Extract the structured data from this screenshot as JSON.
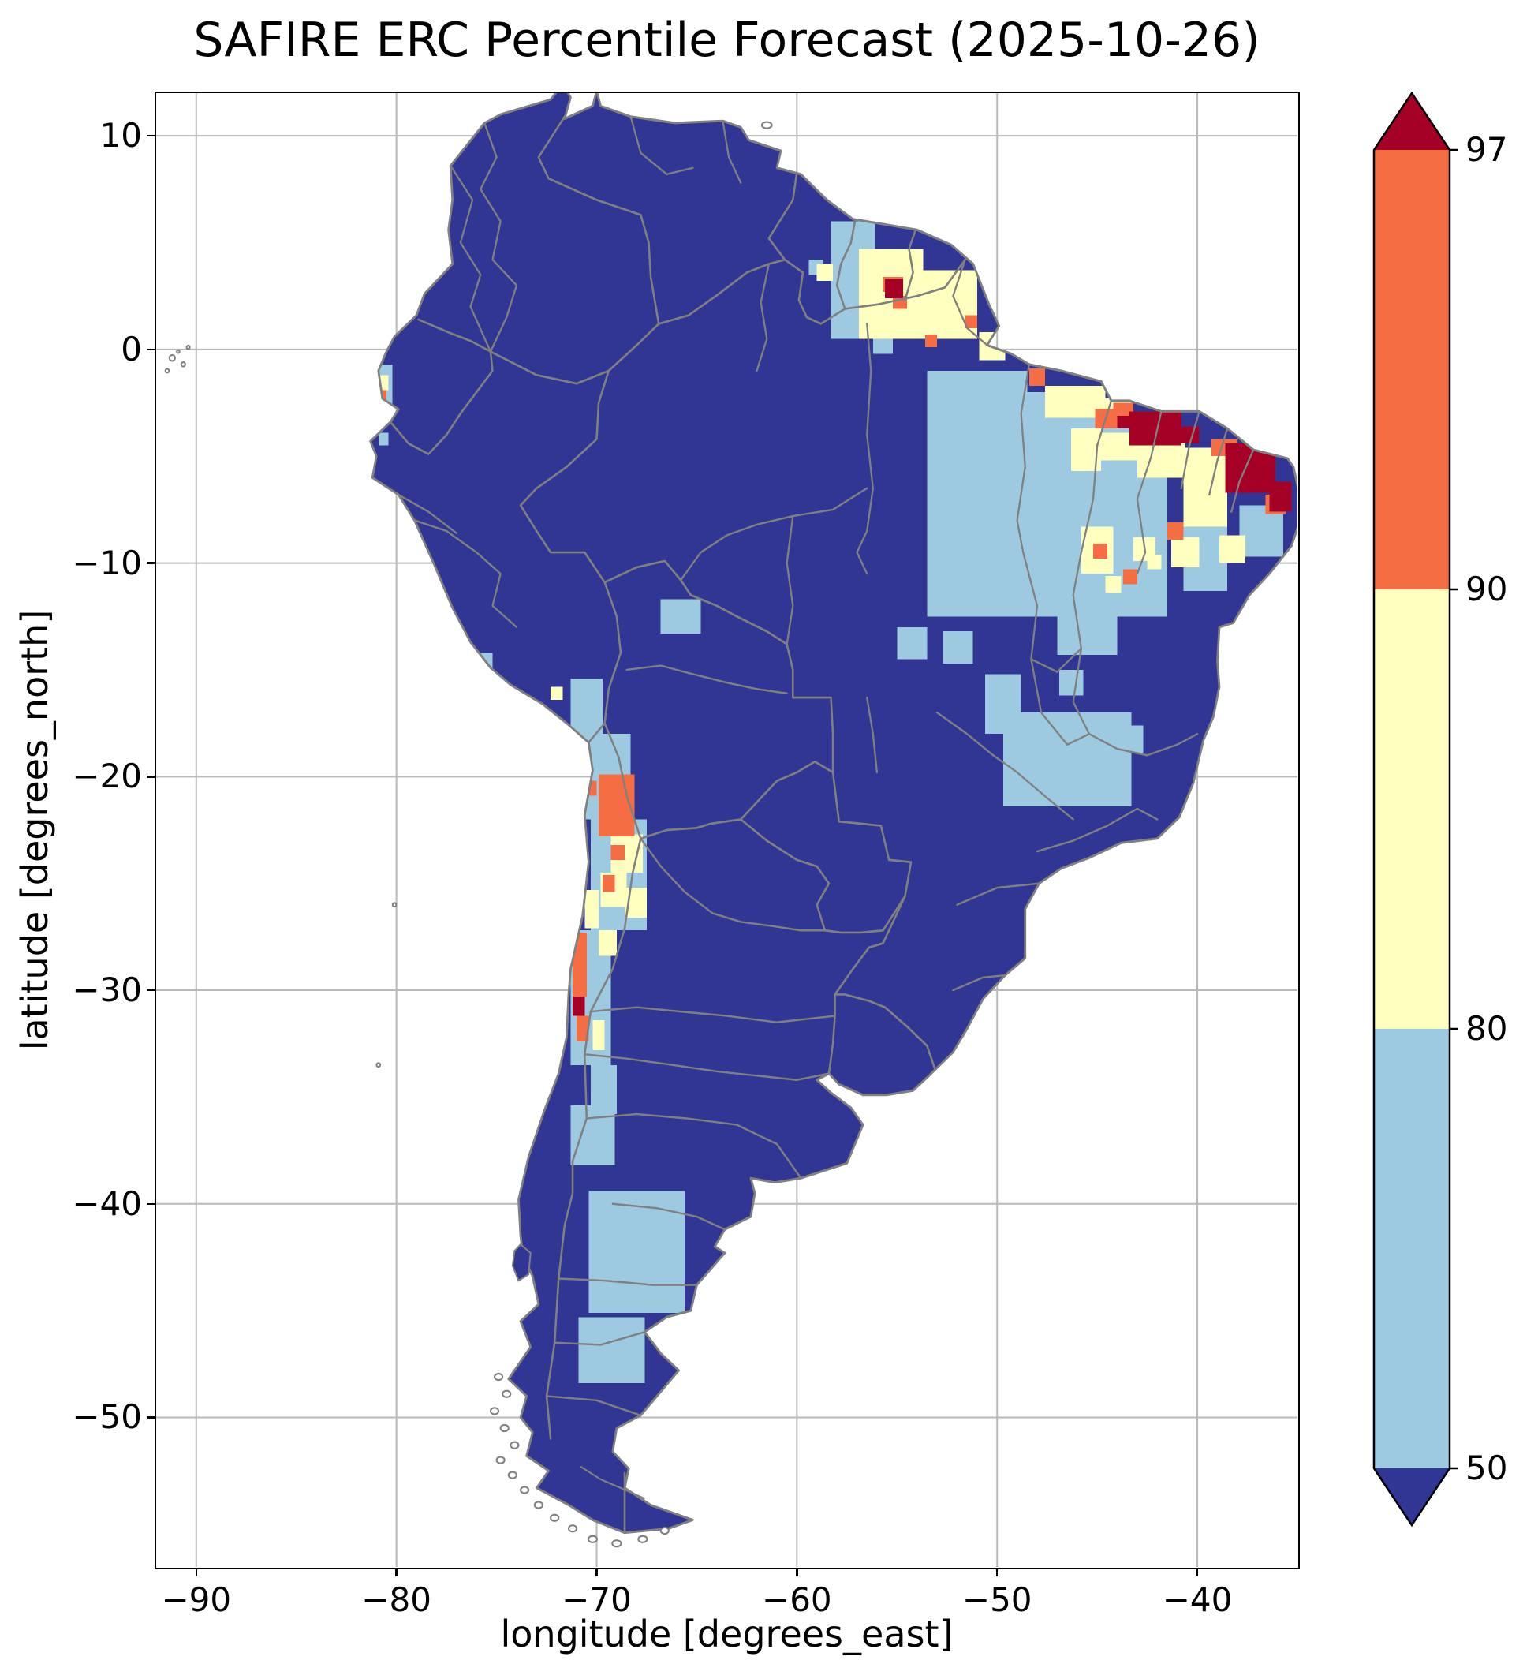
{
  "chart_data": {
    "type": "heatmap",
    "title": "SAFIRE ERC Percentile Forecast (2025-10-26)",
    "xlabel": "longitude [degrees_east]",
    "ylabel": "latitude [degrees_north]",
    "xlim": [
      -92,
      -35
    ],
    "ylim": [
      -57,
      12
    ],
    "x_ticks": [
      -90,
      -80,
      -70,
      -60,
      -50,
      -40
    ],
    "x_tick_labels": [
      "−90",
      "−80",
      "−70",
      "−60",
      "−50",
      "−40"
    ],
    "y_ticks": [
      10,
      0,
      -10,
      -20,
      -30,
      -40,
      -50
    ],
    "y_tick_labels": [
      "10",
      "0",
      "−10",
      "−20",
      "−30",
      "−40",
      "−50"
    ],
    "grid": true,
    "grid_color": "#b9b9b9",
    "boundary_color": "#808080",
    "palette": {
      "below_50": "#313695",
      "p50_80": "#9ecae1",
      "p80_90": "#ffffbf",
      "p90_97": "#f46d43",
      "p97_plus": "#a50026"
    },
    "base_land_value": "below_50",
    "colorbar": {
      "boundaries": [
        50,
        80,
        90,
        97
      ],
      "tick_labels": [
        "97",
        "90",
        "80",
        "50"
      ],
      "extend": "both",
      "segment_colors_top_to_bottom": [
        "#f46d43",
        "#ffffbf",
        "#9ecae1"
      ],
      "extend_colors": {
        "above": "#a50026",
        "below": "#313695"
      }
    },
    "cells": [
      {
        "c": "b",
        "x": -58.3,
        "y": 6.0,
        "w": 2.2,
        "h": 5.5
      },
      {
        "c": "b",
        "x": -56.2,
        "y": 2.0,
        "w": 1.0,
        "h": 2.2
      },
      {
        "c": "b",
        "x": -59.4,
        "y": 4.2,
        "w": 0.7,
        "h": 0.7
      },
      {
        "c": "b",
        "x": -53.5,
        "y": -1.0,
        "w": 5.0,
        "h": 4.0
      },
      {
        "c": "b",
        "x": -53.5,
        "y": -5.0,
        "w": 5.5,
        "h": 7.5
      },
      {
        "c": "b",
        "x": -48.8,
        "y": -2.0,
        "w": 4.0,
        "h": 10.5
      },
      {
        "c": "b",
        "x": -45.0,
        "y": -3.5,
        "w": 3.5,
        "h": 9.0
      },
      {
        "c": "b",
        "x": -40.7,
        "y": -8.3,
        "w": 2.2,
        "h": 3.0
      },
      {
        "c": "b",
        "x": -47.0,
        "y": -12.5,
        "w": 3.0,
        "h": 1.8
      },
      {
        "c": "b",
        "x": -55.0,
        "y": -13.0,
        "w": 1.5,
        "h": 1.5
      },
      {
        "c": "b",
        "x": -52.7,
        "y": -13.2,
        "w": 1.5,
        "h": 1.5
      },
      {
        "c": "b",
        "x": -49.7,
        "y": -17.0,
        "w": 6.4,
        "h": 4.4
      },
      {
        "c": "b",
        "x": -50.6,
        "y": -15.2,
        "w": 1.8,
        "h": 2.8
      },
      {
        "c": "b",
        "x": -46.9,
        "y": -15.0,
        "w": 1.2,
        "h": 1.2
      },
      {
        "c": "b",
        "x": -44.0,
        "y": -17.6,
        "w": 1.3,
        "h": 1.3
      },
      {
        "c": "b",
        "x": -66.8,
        "y": -11.7,
        "w": 2.0,
        "h": 1.6
      },
      {
        "c": "b",
        "x": -71.3,
        "y": -15.4,
        "w": 1.6,
        "h": 2.6
      },
      {
        "c": "b",
        "x": -70.9,
        "y": -18.0,
        "w": 2.6,
        "h": 4.0
      },
      {
        "c": "b",
        "x": -70.3,
        "y": -22.0,
        "w": 2.8,
        "h": 5.2
      },
      {
        "c": "b",
        "x": -71.3,
        "y": -27.2,
        "w": 2.0,
        "h": 6.3
      },
      {
        "c": "b",
        "x": -70.3,
        "y": -33.5,
        "w": 1.3,
        "h": 2.3
      },
      {
        "c": "b",
        "x": -71.3,
        "y": -35.4,
        "w": 2.2,
        "h": 2.8
      },
      {
        "c": "b",
        "x": -70.4,
        "y": -39.4,
        "w": 4.8,
        "h": 5.7
      },
      {
        "c": "b",
        "x": -70.9,
        "y": -45.3,
        "w": 3.3,
        "h": 3.1
      },
      {
        "c": "b",
        "x": -81.1,
        "y": -0.7,
        "w": 0.9,
        "h": 2.6
      },
      {
        "c": "b",
        "x": -80.9,
        "y": -3.9,
        "w": 0.5,
        "h": 0.6
      },
      {
        "c": "b",
        "x": -76.0,
        "y": -14.2,
        "w": 0.8,
        "h": 0.8
      },
      {
        "c": "b",
        "x": -37.9,
        "y": -7.3,
        "w": 2.2,
        "h": 2.4
      },
      {
        "c": "y",
        "x": -56.9,
        "y": 4.7,
        "w": 3.2,
        "h": 4.2
      },
      {
        "c": "y",
        "x": -53.7,
        "y": 3.7,
        "w": 2.7,
        "h": 3.2
      },
      {
        "c": "y",
        "x": -59.0,
        "y": 4.0,
        "w": 0.8,
        "h": 0.8
      },
      {
        "c": "y",
        "x": -50.9,
        "y": 0.8,
        "w": 1.3,
        "h": 1.3
      },
      {
        "c": "y",
        "x": -47.6,
        "y": -1.7,
        "w": 3.0,
        "h": 1.5
      },
      {
        "c": "y",
        "x": -44.6,
        "y": -2.3,
        "w": 1.3,
        "h": 1.2
      },
      {
        "c": "y",
        "x": -46.3,
        "y": -3.7,
        "w": 1.5,
        "h": 2.0
      },
      {
        "c": "y",
        "x": -40.7,
        "y": -4.6,
        "w": 2.2,
        "h": 3.7
      },
      {
        "c": "y",
        "x": -43.0,
        "y": -4.4,
        "w": 2.4,
        "h": 1.6
      },
      {
        "c": "y",
        "x": -44.9,
        "y": -3.9,
        "w": 1.9,
        "h": 1.3
      },
      {
        "c": "y",
        "x": -45.8,
        "y": -8.3,
        "w": 1.6,
        "h": 2.2
      },
      {
        "c": "y",
        "x": -43.2,
        "y": -8.8,
        "w": 1.1,
        "h": 1.1
      },
      {
        "c": "y",
        "x": -41.3,
        "y": -8.8,
        "w": 1.4,
        "h": 1.4
      },
      {
        "c": "y",
        "x": -38.9,
        "y": -8.7,
        "w": 1.3,
        "h": 1.3
      },
      {
        "c": "y",
        "x": -44.6,
        "y": -10.6,
        "w": 0.8,
        "h": 0.8
      },
      {
        "c": "y",
        "x": -42.5,
        "y": -9.6,
        "w": 0.7,
        "h": 0.7
      },
      {
        "c": "y",
        "x": -69.3,
        "y": -22.7,
        "w": 1.6,
        "h": 1.8
      },
      {
        "c": "y",
        "x": -69.8,
        "y": -24.5,
        "w": 1.3,
        "h": 1.6
      },
      {
        "c": "y",
        "x": -68.6,
        "y": -25.2,
        "w": 1.1,
        "h": 1.4
      },
      {
        "c": "y",
        "x": -70.6,
        "y": -25.3,
        "w": 0.7,
        "h": 1.8
      },
      {
        "c": "y",
        "x": -69.9,
        "y": -27.2,
        "w": 0.9,
        "h": 1.2
      },
      {
        "c": "y",
        "x": -70.2,
        "y": -31.4,
        "w": 0.6,
        "h": 1.4
      },
      {
        "c": "y",
        "x": -80.9,
        "y": -1.2,
        "w": 0.5,
        "h": 0.7
      },
      {
        "c": "y",
        "x": -72.3,
        "y": -15.8,
        "w": 0.6,
        "h": 0.6
      },
      {
        "c": "o",
        "x": -55.7,
        "y": 3.4,
        "w": 1.0,
        "h": 0.7
      },
      {
        "c": "o",
        "x": -55.2,
        "y": 2.5,
        "w": 0.7,
        "h": 0.6
      },
      {
        "c": "o",
        "x": -53.6,
        "y": 0.7,
        "w": 0.6,
        "h": 0.6
      },
      {
        "c": "o",
        "x": -51.6,
        "y": 1.6,
        "w": 0.6,
        "h": 0.6
      },
      {
        "c": "o",
        "x": -48.4,
        "y": -0.9,
        "w": 0.8,
        "h": 0.8
      },
      {
        "c": "o",
        "x": -45.1,
        "y": -2.8,
        "w": 1.4,
        "h": 0.9
      },
      {
        "c": "o",
        "x": -44.2,
        "y": -2.5,
        "w": 1.0,
        "h": 0.6
      },
      {
        "c": "o",
        "x": -39.3,
        "y": -4.2,
        "w": 1.3,
        "h": 0.8
      },
      {
        "c": "o",
        "x": -36.6,
        "y": -6.8,
        "w": 1.0,
        "h": 0.9
      },
      {
        "c": "o",
        "x": -41.5,
        "y": -8.1,
        "w": 0.8,
        "h": 0.8
      },
      {
        "c": "o",
        "x": -43.7,
        "y": -10.3,
        "w": 0.7,
        "h": 0.7
      },
      {
        "c": "o",
        "x": -45.2,
        "y": -9.1,
        "w": 0.7,
        "h": 0.7
      },
      {
        "c": "o",
        "x": -69.9,
        "y": -19.9,
        "w": 1.8,
        "h": 2.9
      },
      {
        "c": "o",
        "x": -69.3,
        "y": -23.2,
        "w": 0.7,
        "h": 0.7
      },
      {
        "c": "o",
        "x": -69.7,
        "y": -24.6,
        "w": 0.6,
        "h": 0.8
      },
      {
        "c": "o",
        "x": -71.2,
        "y": -27.3,
        "w": 0.7,
        "h": 3.0
      },
      {
        "c": "o",
        "x": -71.0,
        "y": -31.2,
        "w": 0.6,
        "h": 1.2
      },
      {
        "c": "o",
        "x": -70.5,
        "y": -20.2,
        "w": 0.5,
        "h": 0.7
      },
      {
        "c": "o",
        "x": -80.9,
        "y": -1.9,
        "w": 0.4,
        "h": 0.5
      },
      {
        "c": "r",
        "x": -43.4,
        "y": -2.9,
        "w": 2.6,
        "h": 1.6
      },
      {
        "c": "r",
        "x": -44.0,
        "y": -3.1,
        "w": 0.6,
        "h": 0.6
      },
      {
        "c": "r",
        "x": -40.8,
        "y": -3.6,
        "w": 0.9,
        "h": 0.8
      },
      {
        "c": "r",
        "x": -38.6,
        "y": -4.4,
        "w": 2.5,
        "h": 2.3
      },
      {
        "c": "r",
        "x": -36.4,
        "y": -6.2,
        "w": 1.1,
        "h": 1.4
      },
      {
        "c": "r",
        "x": -55.6,
        "y": 3.3,
        "w": 0.9,
        "h": 0.9
      },
      {
        "c": "r",
        "x": -71.2,
        "y": -30.3,
        "w": 0.6,
        "h": 0.9
      }
    ]
  }
}
